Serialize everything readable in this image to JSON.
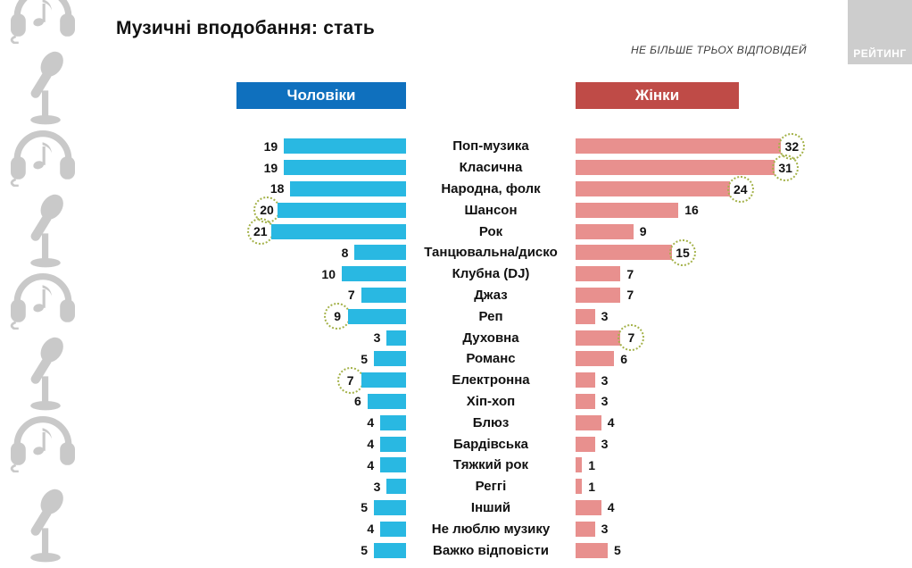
{
  "header": {
    "title": "Музичні вподобання: стать",
    "note": "НЕ БІЛЬШЕ ТРЬОХ ВІДПОВІДЕЙ",
    "logo": "РЕЙТИНГ"
  },
  "legend": {
    "men_label": "Чоловіки",
    "women_label": "Жінки"
  },
  "colors": {
    "men_bar": "#29b8e2",
    "women_bar": "#e8908e",
    "men_header_bg": "#0f70be",
    "women_header_bg": "#bf4b47",
    "circle_stroke": "#a4b24a",
    "logo_bg": "#cdcdcd",
    "icon_gray": "#c9c9c9"
  },
  "sidebar": {
    "icons": [
      "headphones-icon",
      "microphone-icon",
      "headphones-icon",
      "microphone-icon",
      "headphones-icon",
      "microphone-icon",
      "headphones-icon",
      "microphone-icon"
    ]
  },
  "chart_data": {
    "type": "bar",
    "orientation": "horizontal-diverging",
    "title": "Музичні вподобання: стать",
    "subtitle": "НЕ БІЛЬШЕ ТРЬОХ ВІДПОВІДЕЙ",
    "unit": "%",
    "xlim": [
      0,
      32
    ],
    "grid": false,
    "legend_position": "top",
    "categories": [
      "Поп-музика",
      "Класична",
      "Народна, фолк",
      "Шансон",
      "Рок",
      "Танцювальна/диско",
      "Клубна (DJ)",
      "Джаз",
      "Реп",
      "Духовна",
      "Романс",
      "Електронна",
      "Хіп-хоп",
      "Блюз",
      "Бардівська",
      "Тяжкий рок",
      "Реггі",
      "Інший",
      "Не люблю музику",
      "Важко відповісти"
    ],
    "series": [
      {
        "name": "Чоловіки",
        "values": [
          19,
          19,
          18,
          20,
          21,
          8,
          10,
          7,
          9,
          3,
          5,
          7,
          6,
          4,
          4,
          4,
          3,
          5,
          4,
          5
        ],
        "circled": [
          false,
          false,
          false,
          true,
          true,
          false,
          false,
          false,
          true,
          false,
          false,
          true,
          false,
          false,
          false,
          false,
          false,
          false,
          false,
          false
        ]
      },
      {
        "name": "Жінки",
        "values": [
          32,
          31,
          24,
          16,
          9,
          15,
          7,
          7,
          3,
          7,
          6,
          3,
          3,
          4,
          3,
          1,
          1,
          4,
          3,
          5
        ],
        "circled": [
          true,
          true,
          true,
          false,
          false,
          true,
          false,
          false,
          false,
          true,
          false,
          false,
          false,
          false,
          false,
          false,
          false,
          false,
          false,
          false
        ]
      }
    ]
  }
}
